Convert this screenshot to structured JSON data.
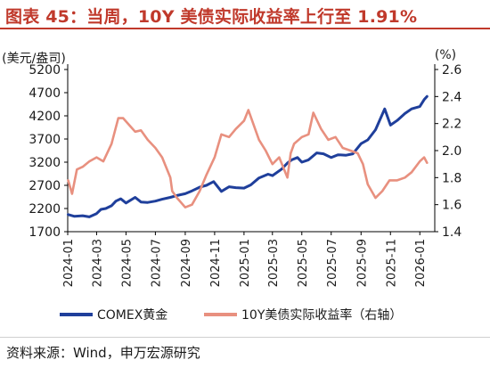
{
  "title": "图表 45：当周，10Y 美债实际收益率上行至 1.91%",
  "source": "资料来源：Wind，申万宏源研究",
  "colors": {
    "title": "#c0392b",
    "gold": "#1f3f9b",
    "yield": "#e8907f"
  },
  "chart_data": {
    "type": "line",
    "x_ticks": [
      "2024-01",
      "2024-03",
      "2024-05",
      "2024-07",
      "2024-09",
      "2024-11",
      "2025-01",
      "2025-03",
      "2025-05",
      "2025-07",
      "2025-09",
      "2025-11",
      "2026-01"
    ],
    "y_left": {
      "label": "(美元/盎司)",
      "ticks": [
        "5200",
        "4700",
        "4200",
        "3700",
        "3200",
        "2700",
        "2200",
        "1700"
      ],
      "lim": [
        1700,
        5200
      ]
    },
    "y_right": {
      "label": "(%)",
      "ticks": [
        "2.6",
        "2.4",
        "2.2",
        "2.0",
        "1.8",
        "1.6",
        "1.4"
      ],
      "lim": [
        1.4,
        2.6
      ]
    },
    "legend_position": "bottom",
    "series": [
      {
        "name": "COMEX黄金",
        "axis": "left",
        "x": [
          "2024-01-02",
          "2024-01-15",
          "2024-02-01",
          "2024-02-15",
          "2024-03-01",
          "2024-03-10",
          "2024-03-20",
          "2024-04-01",
          "2024-04-10",
          "2024-04-20",
          "2024-05-01",
          "2024-05-20",
          "2024-06-01",
          "2024-06-15",
          "2024-07-01",
          "2024-07-15",
          "2024-08-01",
          "2024-08-15",
          "2024-09-01",
          "2024-09-15",
          "2024-10-01",
          "2024-10-15",
          "2024-10-30",
          "2024-11-15",
          "2024-12-01",
          "2024-12-15",
          "2025-01-01",
          "2025-01-15",
          "2025-02-01",
          "2025-02-20",
          "2025-03-01",
          "2025-03-20",
          "2025-04-01",
          "2025-04-10",
          "2025-04-22",
          "2025-05-01",
          "2025-05-15",
          "2025-06-01",
          "2025-06-15",
          "2025-07-01",
          "2025-07-15",
          "2025-08-01",
          "2025-08-15",
          "2025-09-01",
          "2025-09-15",
          "2025-10-01",
          "2025-10-20",
          "2025-11-01",
          "2025-11-15",
          "2025-12-01",
          "2025-12-15",
          "2026-01-01",
          "2026-01-10",
          "2026-01-16"
        ],
        "values": [
          2070,
          2030,
          2045,
          2020,
          2090,
          2180,
          2200,
          2260,
          2360,
          2410,
          2320,
          2440,
          2340,
          2330,
          2360,
          2400,
          2440,
          2480,
          2520,
          2580,
          2660,
          2700,
          2780,
          2570,
          2670,
          2650,
          2640,
          2710,
          2860,
          2940,
          2910,
          3050,
          3180,
          3250,
          3300,
          3200,
          3250,
          3400,
          3380,
          3300,
          3360,
          3350,
          3380,
          3600,
          3680,
          3900,
          4350,
          4000,
          4100,
          4250,
          4350,
          4400,
          4550,
          4620
        ]
      },
      {
        "name": "10Y美债实际收益率（右轴）",
        "axis": "right",
        "x": [
          "2024-01-02",
          "2024-01-10",
          "2024-01-20",
          "2024-02-01",
          "2024-02-15",
          "2024-03-01",
          "2024-03-15",
          "2024-04-01",
          "2024-04-15",
          "2024-04-25",
          "2024-05-10",
          "2024-05-20",
          "2024-06-01",
          "2024-06-15",
          "2024-07-01",
          "2024-07-15",
          "2024-08-01",
          "2024-08-05",
          "2024-08-15",
          "2024-09-01",
          "2024-09-15",
          "2024-10-01",
          "2024-10-15",
          "2024-11-01",
          "2024-11-15",
          "2024-12-01",
          "2024-12-15",
          "2025-01-01",
          "2025-01-10",
          "2025-01-20",
          "2025-02-01",
          "2025-02-15",
          "2025-03-01",
          "2025-03-15",
          "2025-04-01",
          "2025-04-08",
          "2025-04-15",
          "2025-05-01",
          "2025-05-15",
          "2025-05-25",
          "2025-06-10",
          "2025-06-25",
          "2025-07-10",
          "2025-07-25",
          "2025-08-10",
          "2025-08-25",
          "2025-09-05",
          "2025-09-15",
          "2025-10-01",
          "2025-10-15",
          "2025-10-30",
          "2025-11-15",
          "2025-12-01",
          "2025-12-15",
          "2026-01-01",
          "2026-01-10",
          "2026-01-16"
        ],
        "values": [
          1.78,
          1.68,
          1.86,
          1.88,
          1.92,
          1.95,
          1.92,
          2.05,
          2.24,
          2.24,
          2.18,
          2.14,
          2.15,
          2.08,
          2.02,
          1.95,
          1.8,
          1.7,
          1.65,
          1.58,
          1.6,
          1.7,
          1.82,
          1.95,
          2.12,
          2.1,
          2.16,
          2.22,
          2.3,
          2.2,
          2.08,
          2.0,
          1.9,
          1.95,
          1.8,
          1.98,
          2.05,
          2.1,
          2.12,
          2.28,
          2.16,
          2.08,
          2.1,
          2.02,
          2.0,
          1.98,
          1.9,
          1.75,
          1.65,
          1.7,
          1.78,
          1.78,
          1.8,
          1.84,
          1.92,
          1.95,
          1.91
        ]
      }
    ]
  }
}
